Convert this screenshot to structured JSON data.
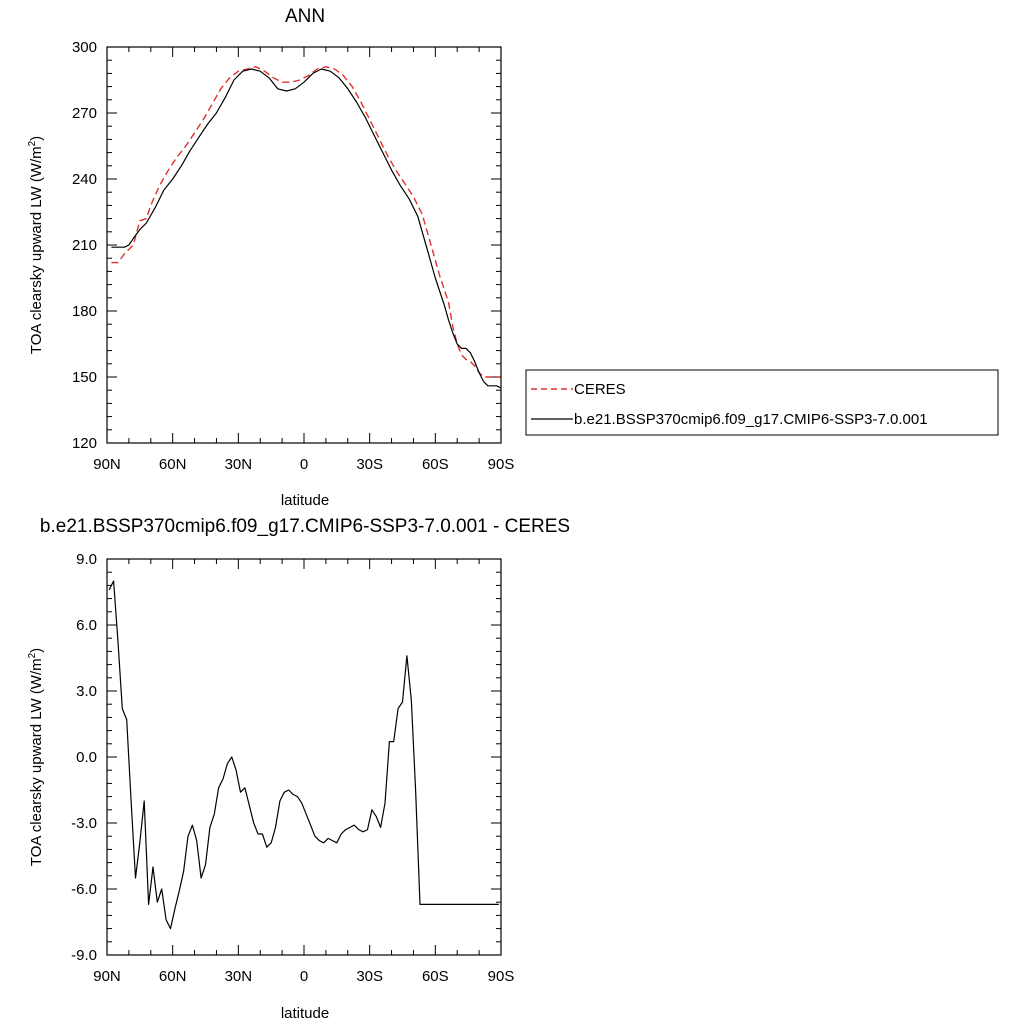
{
  "chart_data": [
    {
      "type": "line",
      "title": "ANN",
      "xlabel": "latitude",
      "ylabel_prefix": "TOA clearsky upward LW (W/m",
      "ylabel_sup": "2",
      "ylabel_suffix": ")",
      "xlim": [
        90,
        -90
      ],
      "ylim": [
        120,
        300
      ],
      "xticks": [
        90,
        60,
        30,
        0,
        -30,
        -60,
        -90
      ],
      "xtick_labels": [
        "90N",
        "60N",
        "30N",
        "0",
        "30S",
        "60S",
        "90S"
      ],
      "yticks": [
        120,
        150,
        180,
        210,
        240,
        270,
        300
      ],
      "ytick_labels": [
        "120",
        "150",
        "180",
        "210",
        "240",
        "270",
        "300"
      ],
      "legend_position": "right",
      "series": [
        {
          "name": "CERES",
          "color": "#e03030",
          "dash": "dashed",
          "x": [
            88,
            85,
            82,
            78,
            75,
            72,
            70,
            66,
            62,
            58,
            54,
            50,
            46,
            42,
            38,
            34,
            30,
            26,
            22,
            18,
            14,
            10,
            6,
            2,
            -2,
            -6,
            -10,
            -14,
            -18,
            -22,
            -26,
            -30,
            -34,
            -38,
            -42,
            -46,
            -50,
            -54,
            -58,
            -62,
            -66,
            -68,
            -70,
            -72,
            -74,
            -76,
            -78,
            -80,
            -82,
            -84,
            -86,
            -88,
            -90
          ],
          "y": [
            202,
            202,
            206,
            210,
            221,
            222,
            228,
            237,
            244,
            250,
            255,
            261,
            267,
            274,
            281,
            286,
            289,
            290,
            291,
            289,
            286,
            284,
            284,
            285,
            287,
            290,
            291,
            290,
            287,
            282,
            275,
            267,
            259,
            251,
            244,
            238,
            232,
            224,
            210,
            196,
            184,
            173,
            165,
            160,
            158,
            157,
            155,
            152,
            150,
            150,
            150,
            150,
            150
          ]
        },
        {
          "name": "b.e21.BSSP370cmip6.f09_g17.CMIP6-SSP3-7.0.001",
          "color": "#000000",
          "dash": "solid",
          "x": [
            88,
            85,
            82,
            80,
            78,
            75,
            72,
            68,
            64,
            60,
            56,
            52,
            48,
            44,
            40,
            36,
            32,
            28,
            24,
            20,
            16,
            12,
            8,
            4,
            0,
            -4,
            -8,
            -12,
            -16,
            -20,
            -24,
            -28,
            -32,
            -36,
            -40,
            -44,
            -48,
            -52,
            -56,
            -60,
            -64,
            -66,
            -68,
            -70,
            -72,
            -74,
            -76,
            -78,
            -80,
            -82,
            -84,
            -86,
            -88,
            -90
          ],
          "y": [
            209,
            209,
            209,
            210,
            213,
            217,
            220,
            227,
            235,
            240,
            246,
            253,
            259,
            265,
            270,
            277,
            285,
            289,
            290,
            289,
            286,
            281,
            280,
            281,
            284,
            288,
            290,
            289,
            286,
            281,
            275,
            268,
            260,
            252,
            244,
            237,
            231,
            223,
            209,
            195,
            183,
            176,
            170,
            165,
            163,
            163,
            161,
            157,
            152,
            148,
            146,
            146,
            146,
            145
          ]
        }
      ]
    },
    {
      "type": "line",
      "title": "b.e21.BSSP370cmip6.f09_g17.CMIP6-SSP3-7.0.001 - CERES",
      "xlabel": "latitude",
      "ylabel_prefix": "TOA clearsky upward LW (W/m",
      "ylabel_sup": "2",
      "ylabel_suffix": ")",
      "xlim": [
        90,
        -90
      ],
      "ylim": [
        -9,
        9
      ],
      "xticks": [
        90,
        60,
        30,
        0,
        -30,
        -60,
        -90
      ],
      "xtick_labels": [
        "90N",
        "60N",
        "30N",
        "0",
        "30S",
        "60S",
        "90S"
      ],
      "yticks": [
        -9,
        -6,
        -3,
        0,
        3,
        6,
        9
      ],
      "ytick_labels": [
        "-9.0",
        "-6.0",
        "-3.0",
        "0.0",
        "3.0",
        "6.0",
        "9.0"
      ],
      "series": [
        {
          "color": "#000000",
          "dash": "solid",
          "x": [
            89,
            87,
            85,
            83,
            81,
            79,
            77,
            75,
            73,
            71,
            69,
            67,
            65,
            63,
            61,
            59,
            57,
            55,
            53,
            51,
            49,
            47,
            45,
            43,
            41,
            39,
            37,
            35,
            33,
            31,
            29,
            27,
            25,
            23,
            21,
            19,
            17,
            15,
            13,
            11,
            9,
            7,
            5,
            3,
            1,
            -1,
            -3,
            -5,
            -7,
            -9,
            -11,
            -13,
            -15,
            -17,
            -19,
            -21,
            -23,
            -25,
            -27,
            -29,
            -31,
            -33,
            -35,
            -37,
            -39,
            -41,
            -43,
            -45,
            -47,
            -49,
            -51,
            -53,
            -55,
            -57,
            -59,
            -61,
            -63,
            -65,
            -67,
            -69,
            -71,
            -73,
            -75,
            -77,
            -79,
            -81,
            -83,
            -85,
            -87,
            -89
          ],
          "y": [
            7.6,
            8.0,
            5.3,
            2.2,
            1.7,
            -2.0,
            -5.5,
            -3.9,
            -2.0,
            -6.7,
            -5.0,
            -6.6,
            -6.0,
            -7.4,
            -7.8,
            -6.9,
            -6.1,
            -5.2,
            -3.6,
            -3.1,
            -3.8,
            -5.5,
            -4.9,
            -3.2,
            -2.6,
            -1.4,
            -1.0,
            -0.3,
            0.0,
            -0.6,
            -1.6,
            -1.4,
            -2.2,
            -3.0,
            -3.5,
            -3.5,
            -4.1,
            -3.9,
            -3.2,
            -2.0,
            -1.6,
            -1.5,
            -1.7,
            -1.8,
            -2.1,
            -2.6,
            -3.1,
            -3.6,
            -3.8,
            -3.9,
            -3.7,
            -3.8,
            -3.9,
            -3.5,
            -3.3,
            -3.2,
            -3.1,
            -3.3,
            -3.4,
            -3.3,
            -2.4,
            -2.7,
            -3.2,
            -2.1,
            0.7,
            0.7,
            2.2,
            2.5,
            4.6,
            2.6,
            -1.5,
            -6.7,
            -6.7,
            -6.7,
            -6.7,
            -6.7,
            -6.7,
            -6.7,
            -6.7,
            -6.7,
            -6.7,
            -6.7,
            -6.7,
            -6.7,
            -6.7,
            -6.7,
            -6.7,
            -6.7,
            -6.7,
            -6.7
          ]
        }
      ]
    }
  ]
}
